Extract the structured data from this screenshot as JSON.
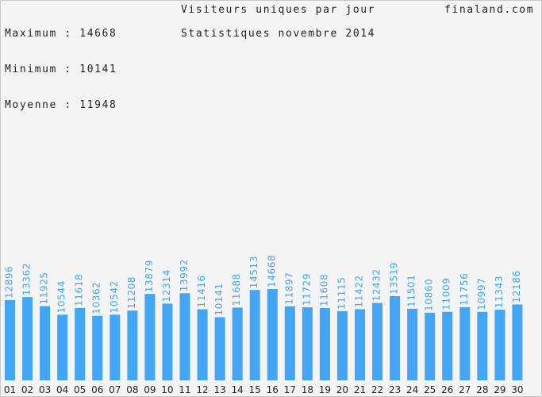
{
  "header": {
    "stats": [
      {
        "label": "Maximum",
        "value": "14668"
      },
      {
        "label": "Minimum",
        "value": "10141"
      },
      {
        "label": "Moyenne",
        "value": "11948"
      }
    ],
    "title": "Visiteurs uniques par jour",
    "subtitle": "Statistiques novembre 2014",
    "site": "finaland.com"
  },
  "chart_data": {
    "type": "bar",
    "title": "Visiteurs uniques par jour",
    "subtitle": "Statistiques novembre 2014",
    "xlabel": "",
    "ylabel": "",
    "ylim": [
      0,
      14668
    ],
    "grid": false,
    "bar_color": "#42a5f5",
    "label_color": "#42a5f5",
    "categories": [
      "01",
      "02",
      "03",
      "04",
      "05",
      "06",
      "07",
      "08",
      "09",
      "10",
      "11",
      "12",
      "13",
      "14",
      "15",
      "16",
      "17",
      "18",
      "19",
      "20",
      "21",
      "22",
      "23",
      "24",
      "25",
      "26",
      "27",
      "28",
      "29",
      "30"
    ],
    "values": [
      12896,
      13362,
      11925,
      10544,
      11618,
      10362,
      10542,
      11208,
      13879,
      12314,
      13992,
      11416,
      10141,
      11688,
      14513,
      14668,
      11897,
      11729,
      11608,
      11115,
      11422,
      12432,
      13519,
      11501,
      10860,
      11009,
      11756,
      10997,
      11343,
      12186
    ]
  }
}
